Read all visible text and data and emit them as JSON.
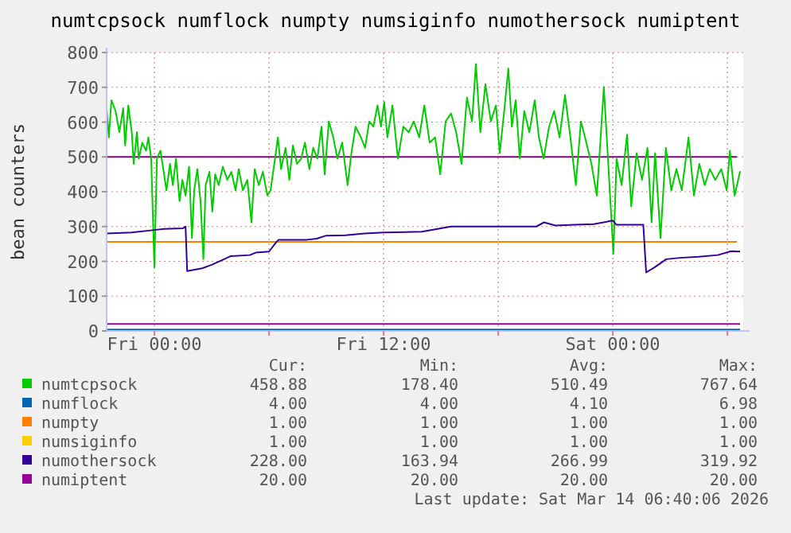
{
  "chart_data": {
    "type": "line",
    "title": "numtcpsock numflock numpty numsiginfo numothersock numiptent",
    "ylabel": "bean counters",
    "xlim": [
      "2026-03-12T21:30",
      "2026-03-14T06:50"
    ],
    "xticks": [
      {
        "value": "2026-03-13T00:00",
        "label": "Fri 00:00"
      },
      {
        "value": "2026-03-13T06:00",
        "label": null
      },
      {
        "value": "2026-03-13T12:00",
        "label": "Fri 12:00"
      },
      {
        "value": "2026-03-13T18:00",
        "label": null
      },
      {
        "value": "2026-03-14T00:00",
        "label": "Sat 00:00"
      },
      {
        "value": "2026-03-14T06:00",
        "label": null
      }
    ],
    "ylim": [
      0,
      800
    ],
    "yticks": [
      0,
      100,
      200,
      300,
      400,
      500,
      600,
      700,
      800
    ],
    "grid": true,
    "legend": "bottom",
    "marker": "none",
    "line_style": "solid",
    "ref_lines": [
      {
        "axis": "y",
        "value": 500,
        "color": "#800080"
      },
      {
        "axis": "y",
        "value": 256,
        "color": "#ff8000"
      }
    ],
    "series": [
      {
        "name": "numtcpsock",
        "color": "#00cc00",
        "x": [
          "2026-03-12T21:30",
          "2026-03-12T21:37",
          "2026-03-12T21:45",
          "2026-03-12T21:58",
          "2026-03-12T22:10",
          "2026-03-12T22:22",
          "2026-03-12T22:28",
          "2026-03-12T22:38",
          "2026-03-12T22:49",
          "2026-03-12T22:55",
          "2026-03-12T23:05",
          "2026-03-12T23:11",
          "2026-03-12T23:22",
          "2026-03-12T23:34",
          "2026-03-12T23:41",
          "2026-03-12T23:50",
          "2026-03-13T00:00",
          "2026-03-13T00:08",
          "2026-03-13T00:19",
          "2026-03-13T00:28",
          "2026-03-13T00:38",
          "2026-03-13T00:49",
          "2026-03-13T00:58",
          "2026-03-13T01:08",
          "2026-03-13T01:19",
          "2026-03-13T01:28",
          "2026-03-13T01:38",
          "2026-03-13T01:49",
          "2026-03-13T01:58",
          "2026-03-13T02:05",
          "2026-03-13T02:15",
          "2026-03-13T02:25",
          "2026-03-13T02:34",
          "2026-03-13T02:41",
          "2026-03-13T02:53",
          "2026-03-13T03:02",
          "2026-03-13T03:11",
          "2026-03-13T03:22",
          "2026-03-13T03:35",
          "2026-03-13T03:49",
          "2026-03-13T04:02",
          "2026-03-13T04:15",
          "2026-03-13T04:25",
          "2026-03-13T04:38",
          "2026-03-13T04:52",
          "2026-03-13T05:05",
          "2026-03-13T05:15",
          "2026-03-13T05:28",
          "2026-03-13T05:41",
          "2026-03-13T05:55",
          "2026-03-13T06:05",
          "2026-03-13T06:19",
          "2026-03-13T06:28",
          "2026-03-13T06:38",
          "2026-03-13T06:52",
          "2026-03-13T07:04",
          "2026-03-13T07:15",
          "2026-03-13T07:28",
          "2026-03-13T07:41",
          "2026-03-13T07:53",
          "2026-03-13T08:07",
          "2026-03-13T08:19",
          "2026-03-13T08:32",
          "2026-03-13T08:45",
          "2026-03-13T08:55",
          "2026-03-13T09:08",
          "2026-03-13T09:22",
          "2026-03-13T09:35",
          "2026-03-13T09:50",
          "2026-03-13T10:07",
          "2026-03-13T10:19",
          "2026-03-13T10:32",
          "2026-03-13T10:49",
          "2026-03-13T11:02",
          "2026-03-13T11:15",
          "2026-03-13T11:28",
          "2026-03-13T11:41",
          "2026-03-13T11:52",
          "2026-03-13T12:02",
          "2026-03-13T12:12",
          "2026-03-13T12:28",
          "2026-03-13T12:45",
          "2026-03-13T13:02",
          "2026-03-13T13:19",
          "2026-03-13T13:35",
          "2026-03-13T13:52",
          "2026-03-13T14:08",
          "2026-03-13T14:25",
          "2026-03-13T14:42",
          "2026-03-13T14:58",
          "2026-03-13T15:15",
          "2026-03-13T15:32",
          "2026-03-13T15:48",
          "2026-03-13T16:05",
          "2026-03-13T16:22",
          "2026-03-13T16:38",
          "2026-03-13T16:50",
          "2026-03-13T17:04",
          "2026-03-13T17:20",
          "2026-03-13T17:37",
          "2026-03-13T17:53",
          "2026-03-13T18:05",
          "2026-03-13T18:19",
          "2026-03-13T18:32",
          "2026-03-13T18:43",
          "2026-03-13T18:55",
          "2026-03-13T19:08",
          "2026-03-13T19:22",
          "2026-03-13T19:38",
          "2026-03-13T19:55",
          "2026-03-13T20:08",
          "2026-03-13T20:23",
          "2026-03-13T20:40",
          "2026-03-13T20:56",
          "2026-03-13T21:13",
          "2026-03-13T21:30",
          "2026-03-13T21:47",
          "2026-03-13T22:04",
          "2026-03-13T22:20",
          "2026-03-13T22:37",
          "2026-03-13T22:53",
          "2026-03-13T23:10",
          "2026-03-13T23:22",
          "2026-03-13T23:32",
          "2026-03-13T23:45",
          "2026-03-14T00:02",
          "2026-03-14T00:12",
          "2026-03-14T00:28",
          "2026-03-14T00:45",
          "2026-03-14T00:58",
          "2026-03-14T01:15",
          "2026-03-14T01:32",
          "2026-03-14T01:49",
          "2026-03-14T02:02",
          "2026-03-14T02:13",
          "2026-03-14T02:30",
          "2026-03-14T02:47",
          "2026-03-14T03:04",
          "2026-03-14T03:20",
          "2026-03-14T03:37",
          "2026-03-14T03:58",
          "2026-03-14T04:15",
          "2026-03-14T04:32",
          "2026-03-14T04:49",
          "2026-03-14T05:05",
          "2026-03-14T05:22",
          "2026-03-14T05:41",
          "2026-03-14T05:58",
          "2026-03-14T06:08",
          "2026-03-14T06:23",
          "2026-03-14T06:40"
        ],
        "values": [
          640,
          556,
          663,
          632,
          571,
          640,
          533,
          648,
          571,
          480,
          571,
          495,
          541,
          518,
          556,
          495,
          183,
          495,
          518,
          465,
          404,
          480,
          419,
          495,
          373,
          434,
          389,
          472,
          267,
          404,
          465,
          373,
          206,
          419,
          457,
          343,
          450,
          419,
          472,
          434,
          457,
          404,
          465,
          404,
          434,
          312,
          465,
          419,
          457,
          389,
          404,
          495,
          556,
          465,
          526,
          434,
          533,
          480,
          495,
          541,
          465,
          526,
          495,
          587,
          450,
          602,
          556,
          495,
          541,
          419,
          511,
          587,
          556,
          526,
          602,
          587,
          648,
          587,
          658,
          556,
          648,
          495,
          587,
          571,
          602,
          556,
          648,
          541,
          556,
          450,
          602,
          625,
          571,
          480,
          671,
          602,
          767,
          571,
          709,
          602,
          648,
          511,
          632,
          754,
          587,
          663,
          495,
          632,
          571,
          663,
          556,
          495,
          587,
          632,
          556,
          678,
          556,
          419,
          602,
          541,
          480,
          389,
          556,
          701,
          495,
          221,
          495,
          419,
          564,
          358,
          511,
          434,
          526,
          312,
          511,
          267,
          526,
          404,
          465,
          404,
          556,
          389,
          480,
          419,
          465,
          434,
          465,
          404,
          518,
          389,
          459
        ]
      },
      {
        "name": "numflock",
        "color": "#0066b3",
        "x": [
          "2026-03-12T21:30",
          "2026-03-14T06:40"
        ],
        "values": [
          4,
          4
        ]
      },
      {
        "name": "numpty",
        "color": "#ff8000"
      },
      {
        "name": "numsiginfo",
        "color": "#ffcc00"
      },
      {
        "name": "numothersock",
        "color": "#330099",
        "x": [
          "2026-03-12T21:30",
          "2026-03-12T22:48",
          "2026-03-13T00:00",
          "2026-03-13T00:30",
          "2026-03-13T01:30",
          "2026-03-13T01:38",
          "2026-03-13T01:43",
          "2026-03-13T02:30",
          "2026-03-13T03:00",
          "2026-03-13T03:36",
          "2026-03-13T04:00",
          "2026-03-13T05:00",
          "2026-03-13T05:18",
          "2026-03-13T06:00",
          "2026-03-13T06:22",
          "2026-03-13T06:30",
          "2026-03-13T08:00",
          "2026-03-13T08:30",
          "2026-03-13T09:00",
          "2026-03-13T10:00",
          "2026-03-13T11:00",
          "2026-03-13T12:00",
          "2026-03-13T14:00",
          "2026-03-13T15:32",
          "2026-03-13T16:00",
          "2026-03-13T20:00",
          "2026-03-13T20:24",
          "2026-03-13T21:00",
          "2026-03-13T22:00",
          "2026-03-13T23:00",
          "2026-03-14T00:00",
          "2026-03-14T00:12",
          "2026-03-14T01:36",
          "2026-03-14T01:45",
          "2026-03-14T02:12",
          "2026-03-14T02:48",
          "2026-03-14T03:30",
          "2026-03-14T04:30",
          "2026-03-14T05:30",
          "2026-03-14T06:12",
          "2026-03-14T06:40"
        ],
        "values": [
          280,
          283,
          290,
          293,
          295,
          300,
          172,
          180,
          190,
          205,
          215,
          218,
          225,
          228,
          254,
          262,
          262,
          265,
          274,
          275,
          280,
          283,
          285,
          300,
          300,
          300,
          312,
          303,
          305,
          307,
          317,
          305,
          305,
          168,
          183,
          206,
          210,
          213,
          218,
          229,
          228
        ]
      },
      {
        "name": "numiptent",
        "color": "#990099",
        "x": [
          "2026-03-12T21:30",
          "2026-03-14T06:40"
        ],
        "values": [
          20,
          20
        ]
      }
    ],
    "annotations": [
      "Cur:",
      "Min:",
      "Avg:",
      "Max:",
      "458.88",
      "178.40",
      "510.49",
      "767.64",
      "4.00",
      "4.00",
      "4.10",
      "6.98",
      "1.00",
      "1.00",
      "1.00",
      "1.00",
      "1.00",
      "1.00",
      "1.00",
      "1.00",
      "228.00",
      "163.94",
      "266.99",
      "319.92",
      "20.00",
      "20.00",
      "20.00",
      "20.00",
      "Last update: Sat Mar 14 06:40:06 2026"
    ]
  }
}
